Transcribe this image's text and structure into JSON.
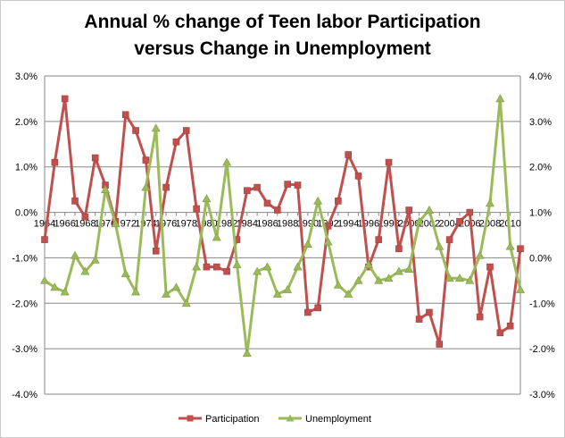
{
  "chart_data": {
    "type": "line",
    "title_lines": [
      "Annual % change of Teen labor Participation",
      "versus Change in Unemployment"
    ],
    "x": [
      1964,
      1965,
      1966,
      1967,
      1968,
      1969,
      1970,
      1971,
      1972,
      1973,
      1974,
      1975,
      1976,
      1977,
      1978,
      1979,
      1980,
      1981,
      1982,
      1983,
      1984,
      1985,
      1986,
      1987,
      1988,
      1989,
      1990,
      1991,
      1992,
      1993,
      1994,
      1995,
      1996,
      1997,
      1998,
      1999,
      2000,
      2001,
      2002,
      2003,
      2004,
      2005,
      2006,
      2007,
      2008,
      2009,
      2010,
      2011
    ],
    "x_tick_labels": [
      "1964",
      "1966",
      "1968",
      "1970",
      "1972",
      "1974",
      "1976",
      "1978",
      "1980",
      "1982",
      "1984",
      "1986",
      "1988",
      "1990",
      "1992",
      "1994",
      "1996",
      "1998",
      "2000",
      "2002",
      "2004",
      "2006",
      "2008",
      "2010"
    ],
    "y_left": {
      "ylim": [
        -4,
        3
      ],
      "ticks": [
        -4,
        -3,
        -2,
        -1,
        0,
        1,
        2,
        3
      ],
      "tick_labels": [
        "-4.0%",
        "-3.0%",
        "-2.0%",
        "-1.0%",
        "0.0%",
        "1.0%",
        "2.0%",
        "3.0%"
      ]
    },
    "y_right": {
      "ylim": [
        -3,
        4
      ],
      "ticks": [
        -3,
        -2,
        -1,
        0,
        1,
        2,
        3,
        4
      ],
      "tick_labels": [
        "-3.0%",
        "-2.0%",
        "-1.0%",
        "0.0%",
        "1.0%",
        "2.0%",
        "3.0%",
        "4.0%"
      ]
    },
    "grid": true,
    "legend_position": "bottom",
    "series": [
      {
        "name": "Participation",
        "axis": "left",
        "color": "#c0504d",
        "marker": "square",
        "values": [
          -0.6,
          1.1,
          2.5,
          0.25,
          -0.1,
          1.2,
          0.6,
          -0.2,
          2.15,
          1.8,
          1.15,
          -0.85,
          0.55,
          1.55,
          1.8,
          0.08,
          -1.2,
          -1.2,
          -1.3,
          -0.6,
          0.48,
          0.55,
          0.2,
          0.05,
          0.62,
          0.6,
          -2.2,
          -2.1,
          -0.3,
          0.25,
          1.27,
          0.8,
          -1.2,
          -0.6,
          1.1,
          -0.8,
          0.05,
          -2.35,
          -2.2,
          -2.9,
          -0.6,
          -0.2,
          0.0,
          -2.3,
          -1.2,
          -2.65,
          -2.5,
          -0.8
        ]
      },
      {
        "name": "Unemployment",
        "axis": "right",
        "color": "#9bbb59",
        "marker": "triangle",
        "values": [
          -0.5,
          -0.65,
          -0.75,
          0.05,
          -0.3,
          -0.05,
          1.5,
          0.75,
          -0.35,
          -0.75,
          1.55,
          2.85,
          -0.8,
          -0.65,
          -1.0,
          -0.2,
          1.3,
          0.45,
          2.1,
          -0.15,
          -2.1,
          -0.3,
          -0.2,
          -0.8,
          -0.7,
          -0.2,
          0.3,
          1.25,
          0.35,
          -0.6,
          -0.8,
          -0.5,
          -0.15,
          -0.5,
          -0.45,
          -0.3,
          -0.25,
          0.8,
          1.05,
          0.25,
          -0.45,
          -0.45,
          -0.5,
          0.05,
          1.2,
          3.5,
          0.25,
          -0.7
        ]
      }
    ]
  }
}
